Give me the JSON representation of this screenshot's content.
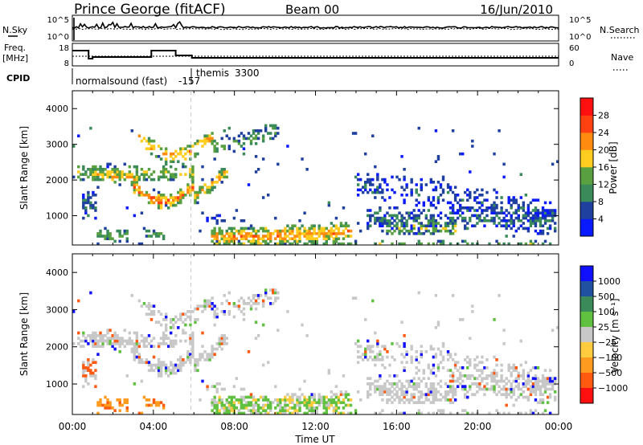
{
  "header": {
    "station": "Prince George (fitACF)",
    "beam": "Beam 00",
    "date": "16/Jun/2010"
  },
  "panel_nsky": {
    "left_label": "N.Sky",
    "left_ticks": [
      "10^5",
      "10^0"
    ],
    "right_label": "N.Search",
    "right_ticks": [
      "10^5",
      "10^0"
    ]
  },
  "panel_freq": {
    "left_label_1": "Freq.",
    "left_label_2": "[MHz]",
    "left_ticks": [
      "18",
      "8"
    ],
    "right_label": "Nave",
    "right_ticks": [
      "60",
      "0"
    ],
    "cpid_label": "CPID",
    "cpid_text_1": "normalsound (fast)",
    "cpid_text_2": "-157",
    "cpid_text_3": "themis",
    "cpid_text_4": "3300"
  },
  "colors": {
    "power_scale": [
      "#0a1aff",
      "#2040a0",
      "#3a8a5a",
      "#58a040",
      "#ffcc20",
      "#ff8c10",
      "#ff4010",
      "#ff1010"
    ],
    "velocity_scale": [
      "#ff1010",
      "#ff5a10",
      "#ff9c20",
      "#ffcc40",
      "#c8c8c8",
      "#60c040",
      "#3a8a5a",
      "#2050a0",
      "#1010ff"
    ]
  },
  "chart_data": [
    {
      "type": "heatmap",
      "title": "",
      "xlabel": "",
      "ylabel": "Slant Range [km]",
      "x_ticks": [
        "00:00",
        "04:00",
        "08:00",
        "12:00",
        "16:00",
        "20:00",
        "00:00"
      ],
      "y_ticks": [
        "1000",
        "2000",
        "3000",
        "4000"
      ],
      "ylim": [
        180,
        4500
      ],
      "colorbar_label": "Power [dB]",
      "colorbar_ticks": [
        "4",
        "8",
        "12",
        "16",
        "20",
        "24",
        "28"
      ]
    },
    {
      "type": "heatmap",
      "title": "",
      "xlabel": "Time UT",
      "ylabel": "Slant Range [km]",
      "x_ticks": [
        "00:00",
        "04:00",
        "08:00",
        "12:00",
        "16:00",
        "20:00",
        "00:00"
      ],
      "y_ticks": [
        "1000",
        "2000",
        "3000",
        "4000"
      ],
      "ylim": [
        180,
        4500
      ],
      "colorbar_label": "Velocity [m s⁻¹]",
      "colorbar_ticks": [
        "1000",
        "500",
        "100",
        "25",
        "−25",
        "−100",
        "−500",
        "−1000"
      ]
    }
  ]
}
